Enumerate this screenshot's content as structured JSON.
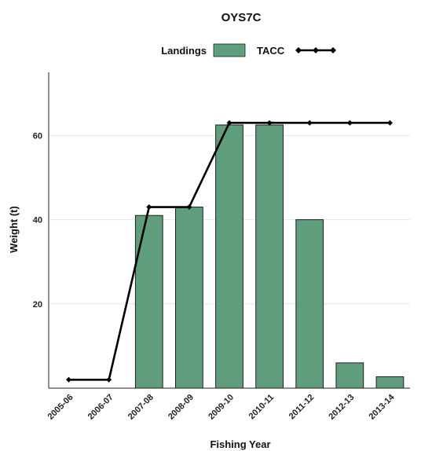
{
  "chart_data": {
    "type": "bar",
    "title": "OYS7C",
    "xlabel": "Fishing Year",
    "ylabel": "Weight (t)",
    "categories": [
      "2005-06",
      "2006-07",
      "2007-08",
      "2008-09",
      "2009-10",
      "2010-11",
      "2011-12",
      "2012-13",
      "2013-14"
    ],
    "ylim": [
      0,
      75
    ],
    "yticks": [
      20,
      40,
      60
    ],
    "grid": "horizontal",
    "legend_position": "top-center",
    "series": [
      {
        "name": "Landings",
        "type": "bar",
        "color": "#5f9e7c",
        "values": [
          null,
          null,
          41,
          43,
          62.5,
          62.5,
          40,
          6,
          2.7
        ]
      },
      {
        "name": "TACC",
        "type": "line",
        "color": "#000000",
        "marker": "diamond",
        "values": [
          2,
          2,
          43,
          43,
          63,
          63,
          63,
          63,
          63
        ]
      }
    ]
  }
}
